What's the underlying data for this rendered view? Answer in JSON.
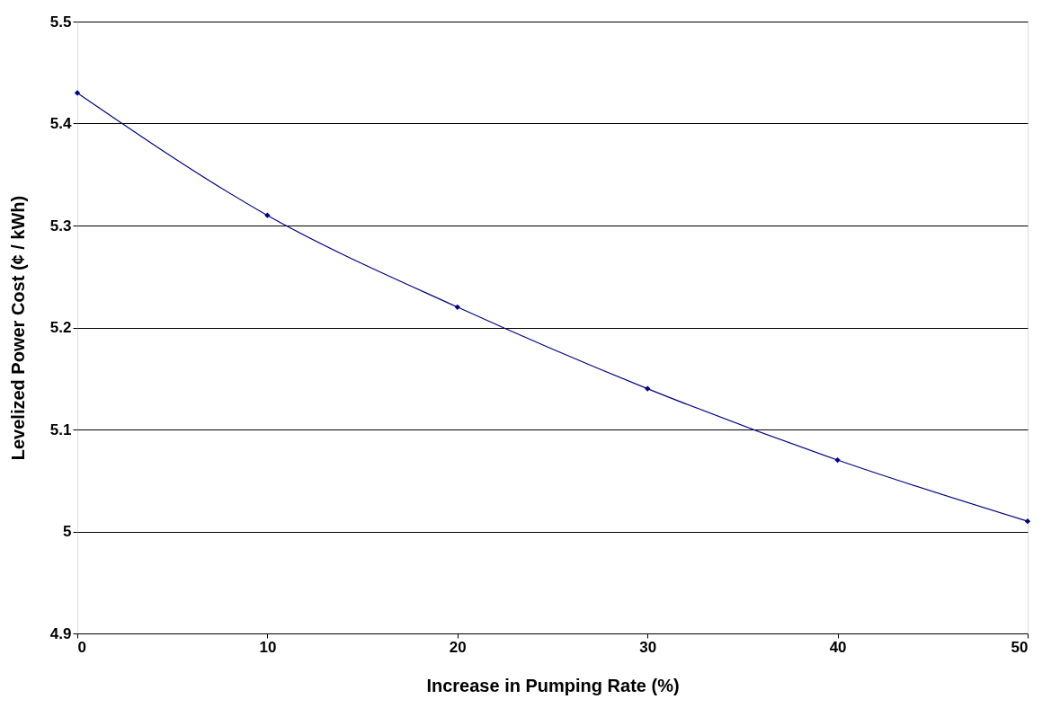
{
  "chart_data": {
    "type": "line",
    "xlabel": "Increase in Pumping Rate (%)",
    "ylabel": "Levelized Power Cost (¢ / kWh)",
    "x": [
      0,
      10,
      20,
      30,
      40,
      50
    ],
    "series": [
      {
        "color": "#000080",
        "values": [
          5.43,
          5.31,
          5.22,
          5.14,
          5.07,
          5.01
        ]
      }
    ],
    "xlim": [
      0,
      50
    ],
    "xticks": [
      0,
      10,
      20,
      30,
      40,
      50
    ],
    "ylim": [
      4.9,
      5.5
    ],
    "yticks": [
      4.9,
      5,
      5.1,
      5.2,
      5.3,
      5.4,
      5.5
    ],
    "grid": "y",
    "marker": "diamond",
    "line_style": "solid",
    "legend": false
  }
}
